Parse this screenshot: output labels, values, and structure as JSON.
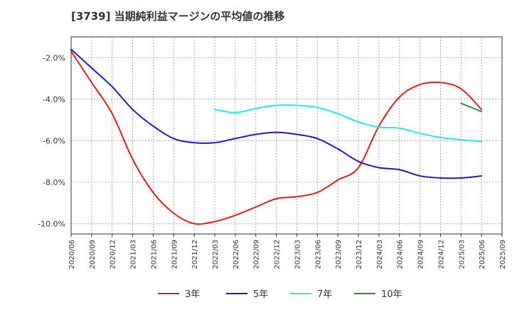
{
  "chart_data": {
    "type": "line",
    "title": "[3739]  当期純利益マージンの平均値の推移",
    "xlabel": "",
    "ylabel": "",
    "ylim": [
      -10.5,
      -1.0
    ],
    "yticks": [
      -2.0,
      -4.0,
      -6.0,
      -8.0,
      -10.0
    ],
    "ytick_labels": [
      "-2.0%",
      "-4.0%",
      "-6.0%",
      "-8.0%",
      "-10.0%"
    ],
    "categories": [
      "2020/06",
      "2020/09",
      "2020/12",
      "2021/03",
      "2021/06",
      "2021/09",
      "2021/12",
      "2022/03",
      "2022/06",
      "2022/09",
      "2022/12",
      "2023/03",
      "2023/06",
      "2023/09",
      "2023/12",
      "2024/03",
      "2024/06",
      "2024/09",
      "2024/12",
      "2025/03",
      "2025/06",
      "2025/09"
    ],
    "grid": true,
    "legend_position": "bottom",
    "series": [
      {
        "name": "3年",
        "color": "#e31a1c",
        "x": [
          "2020/06",
          "2020/09",
          "2020/12",
          "2021/03",
          "2021/06",
          "2021/09",
          "2021/12",
          "2022/03",
          "2022/06",
          "2022/09",
          "2022/12",
          "2023/03",
          "2023/06",
          "2023/09",
          "2023/12",
          "2024/03",
          "2024/06",
          "2024/09",
          "2024/12",
          "2025/03",
          "2025/06"
        ],
        "values": [
          -1.7,
          -3.2,
          -4.7,
          -6.9,
          -8.5,
          -9.5,
          -10.0,
          -9.9,
          -9.6,
          -9.2,
          -8.8,
          -8.7,
          -8.5,
          -7.9,
          -7.3,
          -5.3,
          -3.9,
          -3.3,
          -3.2,
          -3.5,
          -4.5
        ]
      },
      {
        "name": "5年",
        "color": "#1a1aca",
        "x": [
          "2020/06",
          "2020/09",
          "2020/12",
          "2021/03",
          "2021/06",
          "2021/09",
          "2021/12",
          "2022/03",
          "2022/06",
          "2022/09",
          "2022/12",
          "2023/03",
          "2023/06",
          "2023/09",
          "2023/12",
          "2024/03",
          "2024/06",
          "2024/09",
          "2024/12",
          "2025/03",
          "2025/06"
        ],
        "values": [
          -1.6,
          -2.5,
          -3.4,
          -4.5,
          -5.3,
          -5.9,
          -6.1,
          -6.1,
          -5.9,
          -5.7,
          -5.6,
          -5.7,
          -5.9,
          -6.4,
          -7.0,
          -7.3,
          -7.4,
          -7.7,
          -7.8,
          -7.8,
          -7.7
        ]
      },
      {
        "name": "7年",
        "color": "#22e8f0",
        "x": [
          "2022/03",
          "2022/06",
          "2022/09",
          "2022/12",
          "2023/03",
          "2023/06",
          "2023/09",
          "2023/12",
          "2024/03",
          "2024/06",
          "2024/09",
          "2024/12",
          "2025/03",
          "2025/06"
        ],
        "values": [
          -4.5,
          -4.65,
          -4.45,
          -4.3,
          -4.3,
          -4.4,
          -4.7,
          -5.1,
          -5.35,
          -5.4,
          -5.65,
          -5.85,
          -5.95,
          -6.05
        ]
      },
      {
        "name": "10年",
        "color": "#2e8b2e",
        "x": [
          "2025/03",
          "2025/06"
        ],
        "values": [
          -4.2,
          -4.6
        ]
      }
    ]
  }
}
